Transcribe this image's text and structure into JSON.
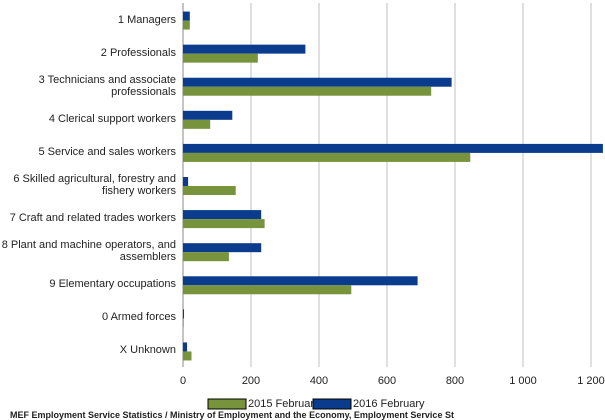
{
  "chart_data": {
    "type": "barh",
    "categories": [
      "1 Managers",
      "2 Professionals",
      "3 Technicians and associate professionals",
      "4 Clerical support workers",
      "5 Service and sales workers",
      "6 Skilled agricultural, forestry and fishery workers",
      "7 Craft and related trades workers",
      "8 Plant and machine operators, and assemblers",
      "9 Elementary occupations",
      "0 Armed forces",
      "X Unknown"
    ],
    "series": [
      {
        "name": "2016 February",
        "color": "#0b3b8c",
        "values": [
          20,
          360,
          790,
          145,
          1235,
          15,
          230,
          230,
          690,
          3,
          12
        ]
      },
      {
        "name": "2015 February",
        "color": "#77933c",
        "values": [
          20,
          220,
          730,
          80,
          845,
          155,
          240,
          135,
          495,
          2,
          25
        ]
      }
    ],
    "xlim": [
      0,
      1200
    ],
    "xticks": [
      0,
      200,
      400,
      600,
      800,
      {
        "value": 1000,
        "label": "1 000"
      },
      {
        "value": 1200,
        "label": "1 200"
      }
    ],
    "grid": true,
    "legend": "bottom",
    "source": "MEF Employment Service Statistics / Ministry of Employment and the Economy, Employment Service St"
  }
}
